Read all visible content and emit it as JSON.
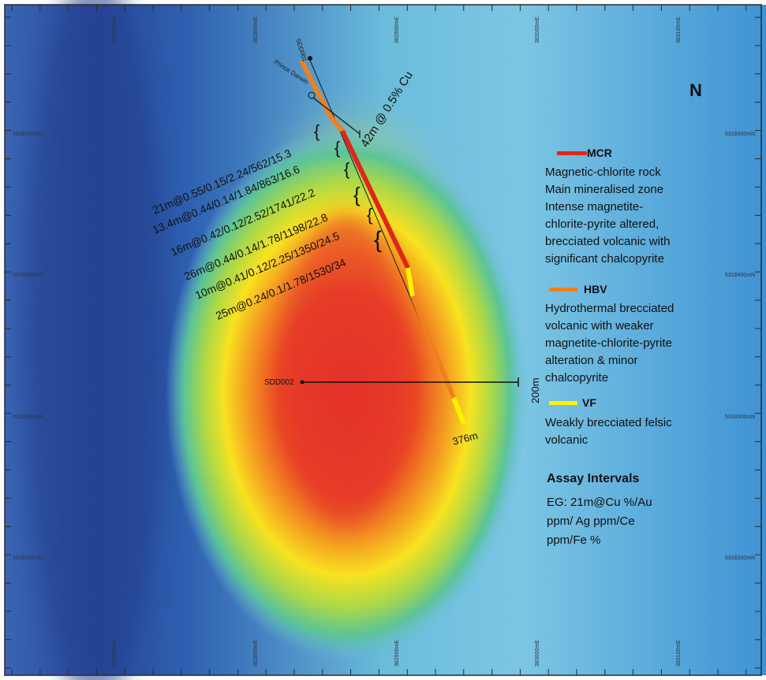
{
  "north_label": "N",
  "grid": {
    "easting_labels": [
      "382700mE",
      "382800mE",
      "382900mE",
      "383000mE",
      "383100mE"
    ],
    "northing_labels": [
      "5318500mN",
      "5318400mN",
      "5318300mN",
      "5318200mN"
    ]
  },
  "drillholes": [
    {
      "name": "SDD001",
      "prospect_label": "Prince Darwin"
    },
    {
      "name": "SDD002"
    }
  ],
  "intercept_summary": "42m @ 0.5% Cu",
  "assay_intervals_on_hole": [
    "21m@0.55/0.15/2.24/562/15.3",
    "13.4m@0.44/0.14/1.84/863/16.6",
    "16m@0.42/0.12/2.52/1741/22.2",
    "26m@0.44/0.14/1.78/1198/22.8",
    "10m@0.41/0.12/2.25/1350/24.5",
    "25m@0.24/0.1/1.78/1530/34"
  ],
  "depth_labels": {
    "end_of_hole": "376m",
    "sdd002_depth": "200m"
  },
  "legend": {
    "items": [
      {
        "code": "MCR",
        "color": "#e0261c",
        "lines": [
          "Magnetic-chlorite rock",
          "Main mineralised zone",
          "Intense magnetite-",
          "chlorite-pyrite altered,",
          "brecciated volcanic with",
          "significant chalcopyrite"
        ]
      },
      {
        "code": "HBV",
        "color": "#f0801e",
        "lines": [
          "Hydrothermal brecciated",
          "volcanic with weaker",
          "magnetite-chlorite-pyrite",
          "alteration & minor",
          "chalcopyrite"
        ]
      },
      {
        "code": "VF",
        "color": "#fff200",
        "lines": [
          "Weakly brecciated felsic",
          "volcanic"
        ]
      }
    ],
    "assay_title": "Assay Intervals",
    "assay_lines": [
      "EG: 21m@Cu %/Au",
      "ppm/ Ag ppm/Ce",
      "ppm/Fe %"
    ]
  },
  "colors": {
    "background_low": "#2b4ea8",
    "background_mid": "#4aa3d8",
    "anomaly_high": "#e8322a",
    "anomaly_mid": "#f7e21c",
    "frame": "#2a2a2a"
  }
}
